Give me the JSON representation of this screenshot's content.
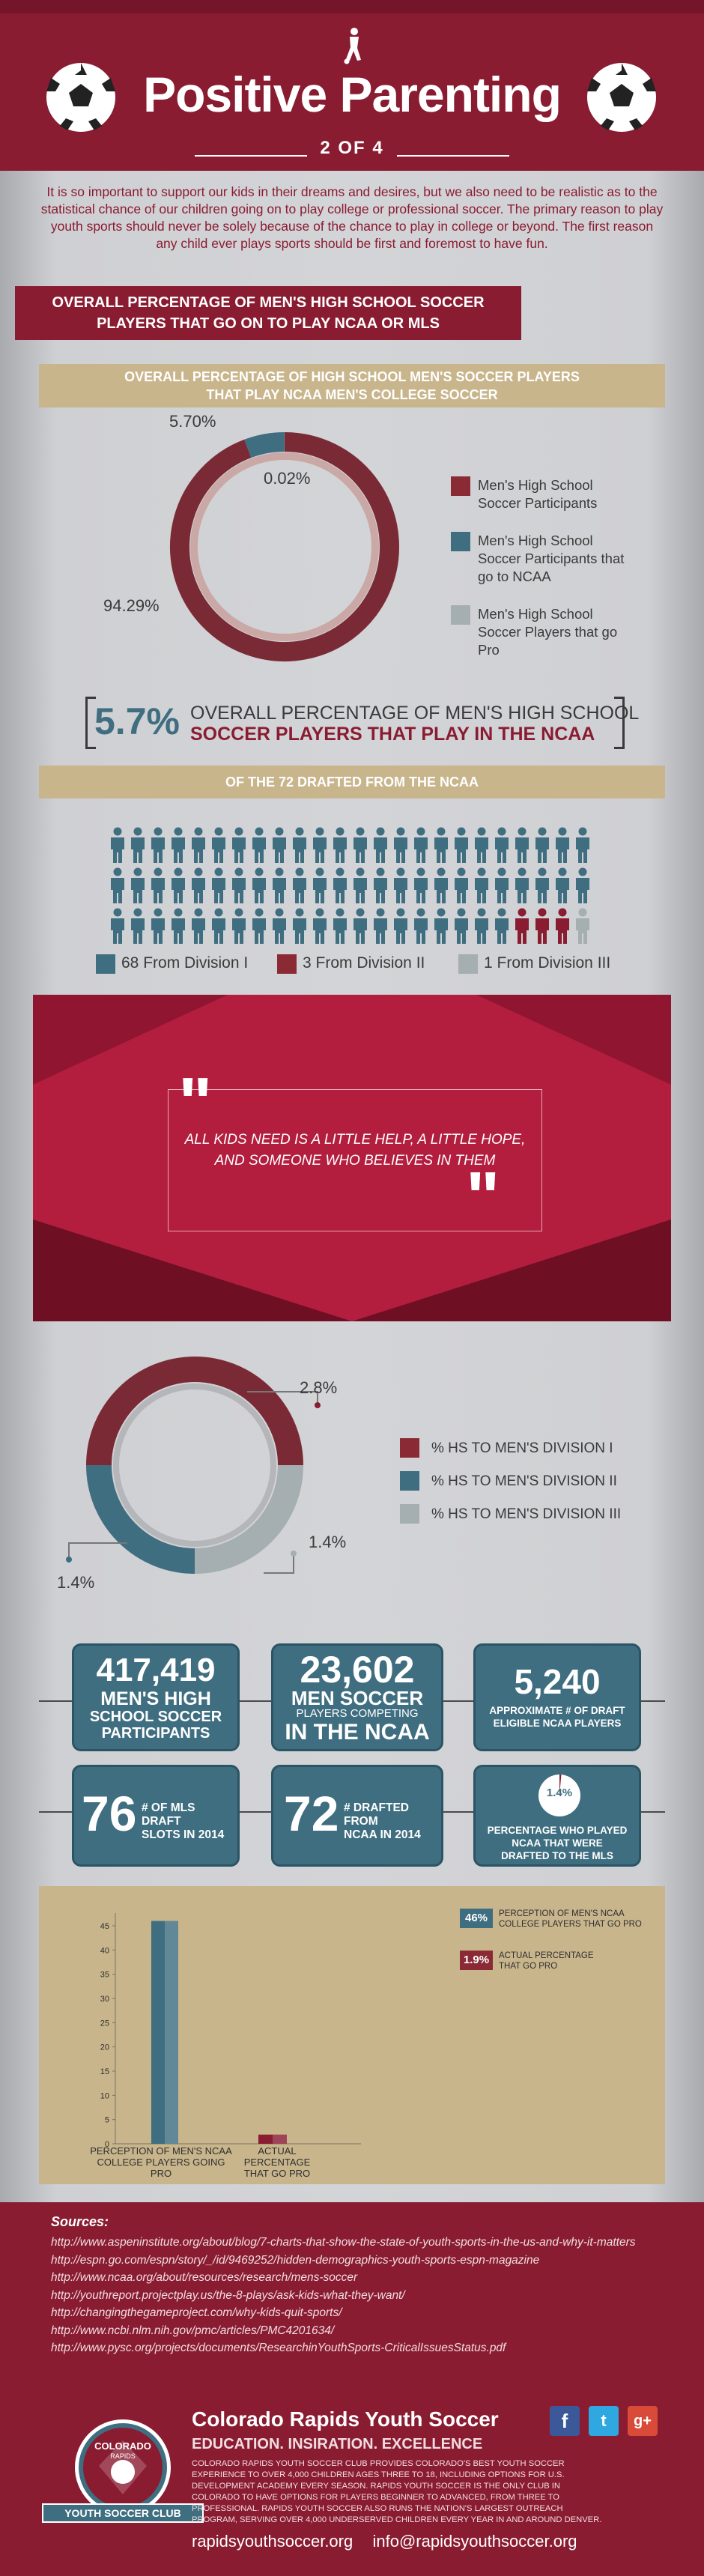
{
  "header": {
    "title": "Positive Parenting",
    "subtitle": "2 OF 4"
  },
  "intro": "It is so important to support our kids in their dreams and desires, but we also need to be realistic as to the statistical chance of our children going on to play college or professional soccer. The primary reason to play youth sports should never be solely because of the chance to play in college or beyond. The first reason any child ever plays sports should be first and foremost to have fun.",
  "section1": {
    "label_line1": "OVERALL PERCENTAGE OF MEN'S HIGH SCHOOL SOCCER",
    "label_line2": "PLAYERS THAT GO ON TO PLAY NCAA OR MLS",
    "bar_line1": "OVERALL PERCENTAGE OF HIGH SCHOOL MEN'S SOCCER PLAYERS",
    "bar_line2": "THAT PLAY NCAA MEN'S COLLEGE SOCCER"
  },
  "donut1": {
    "labels": [
      "94.29%",
      "5.70%",
      "0.02%"
    ],
    "values": [
      94.29,
      5.7,
      0.02
    ],
    "colors": [
      "#7a2a35",
      "#3f6e80",
      "#a5aeb0"
    ],
    "legend": [
      {
        "line1": "Men's High School",
        "line2": "Soccer Participants",
        "line3": ""
      },
      {
        "line1": "Men's High School",
        "line2": "Soccer Participants that",
        "line3": "go to NCAA"
      },
      {
        "line1": "Men's High School",
        "line2": "Soccer Players that go",
        "line3": "Pro"
      }
    ]
  },
  "bigstat": {
    "percent": "5.7%",
    "line1": "OVERALL PERCENTAGE OF MEN'S HIGH SCHOOL",
    "line2": "SOCCER PLAYERS THAT PLAY IN THE NCAA"
  },
  "drafted": {
    "bar": "OF THE 72 DRAFTED FROM THE NCAA",
    "counts": [
      68,
      3,
      1
    ],
    "colors": [
      "#3f6e80",
      "#8a1c32",
      "#a5aeb0"
    ],
    "legend": [
      "68 From Division I",
      "3 From Division II",
      "1 From Division III"
    ]
  },
  "quote": {
    "line1": "ALL KIDS NEED IS A LITTLE HELP, A LITTLE HOPE,",
    "line2": "AND SOMEONE WHO BELIEVES IN THEM"
  },
  "donut2": {
    "values": [
      2.8,
      1.4,
      1.4
    ],
    "colors": [
      "#7a2a35",
      "#3f6e80",
      "#a5aeb0"
    ],
    "labels": [
      "2.8%",
      "1.4%",
      "1.4%"
    ],
    "legend": [
      "% HS TO MEN'S DIVISION I",
      "% HS TO MEN'S DIVISION II",
      "% HS TO MEN'S DIVISION III"
    ]
  },
  "stats": {
    "box1_num": "417,419",
    "box1_l1": "MEN'S HIGH",
    "box1_l2": "SCHOOL SOCCER",
    "box1_l3": "PARTICIPANTS",
    "box2_num": "23,602",
    "box2_l1": "MEN SOCCER",
    "box2_l2": "PLAYERS COMPETING",
    "box2_l3": "IN THE NCAA",
    "box3_num": "5,240",
    "box3_l1": "APPROXIMATE # OF DRAFT",
    "box3_l2": "ELIGIBLE NCAA PLAYERS",
    "box4_num": "76",
    "box4_l1": "# OF MLS DRAFT",
    "box4_l2": "SLOTS IN 2014",
    "box5_num": "72",
    "box5_l1": "# DRAFTED FROM",
    "box5_l2": "NCAA IN 2014",
    "box6_pct": "1.4%",
    "box6_value": 1.4,
    "box6_l1": "PERCENTAGE WHO PLAYED",
    "box6_l2": "NCAA THAT WERE",
    "box6_l3": "DRAFTED TO THE MLS"
  },
  "chart_data": {
    "type": "bar",
    "categories": [
      "PERCEPTION OF MEN'S NCAA COLLEGE PLAYERS GOING PRO",
      "ACTUAL PERCENTAGE THAT GO PRO"
    ],
    "values": [
      46,
      1.9
    ],
    "yticks": [
      0,
      5,
      10,
      15,
      20,
      25,
      30,
      35,
      40,
      45
    ],
    "ylim": [
      0,
      47
    ],
    "colors": [
      "#3f6e80",
      "#8a1c32"
    ],
    "cat1_l1": "PERCEPTION OF MEN'S NCAA",
    "cat1_l2": "COLLEGE PLAYERS GOING",
    "cat1_l3": "PRO",
    "cat2_l1": "ACTUAL PERCENTAGE",
    "cat2_l2": "THAT GO PRO",
    "legend": [
      {
        "badge": "46%",
        "line1": "PERCEPTION OF MEN'S NCAA",
        "line2": "COLLEGE PLAYERS THAT GO PRO"
      },
      {
        "badge": "1.9%",
        "line1": "ACTUAL PERCENTAGE",
        "line2": "THAT GO PRO"
      }
    ]
  },
  "sources": {
    "heading": "Sources:",
    "links": [
      "http://www.aspeninstitute.org/about/blog/7-charts-that-show-the-state-of-youth-sports-in-the-us-and-why-it-matters",
      "http://espn.go.com/espn/story/_/id/9469252/hidden-demographics-youth-sports-espn-magazine",
      "http://www.ncaa.org/about/resources/research/mens-soccer",
      "http://youthreport.projectplay.us/the-8-plays/ask-kids-what-they-want/",
      "http://changingthegameproject.com/why-kids-quit-sports/",
      "http://www.ncbi.nlm.nih.gov/pmc/articles/PMC4201634/",
      "http://www.pysc.org/projects/documents/ResearchinYouthSports-CriticalIssuesStatus.pdf"
    ]
  },
  "footer": {
    "logo_top": "COLORADO",
    "logo_mid": "RAPIDS",
    "logo_banner": "YOUTH SOCCER CLUB",
    "org": "Colorado Rapids Youth Soccer",
    "tagline": "EDUCATION. INSIRATION. EXCELLENCE",
    "desc1": "COLORADO RAPIDS YOUTH SOCCER CLUB PROVIDES COLORADO'S BEST YOUTH SOCCER",
    "desc2": "EXPERIENCE TO OVER 4,000 CHILDREN AGES THREE TO 18, INCLUDING OPTIONS FOR U.S.",
    "desc3": "DEVELOPMENT ACADEMY EVERY SEASON. RAPIDS YOUTH SOCCER IS THE ONLY CLUB IN",
    "desc4": "COLORADO TO HAVE OPTIONS FOR PLAYERS BEGINNER TO ADVANCED, FROM THREE TO",
    "desc5": "PROFESSIONAL. RAPIDS YOUTH SOCCER ALSO RUNS THE NATION'S LARGEST OUTREACH",
    "desc6": "PROGRAM, SERVING OVER 4,000 UNDERSERVED CHILDREN EVERY YEAR IN AND AROUND DENVER.",
    "website": "rapidsyouthsoccer.org",
    "email": "info@rapidsyouthsoccer.org",
    "social": [
      "f",
      "t",
      "g+"
    ]
  }
}
